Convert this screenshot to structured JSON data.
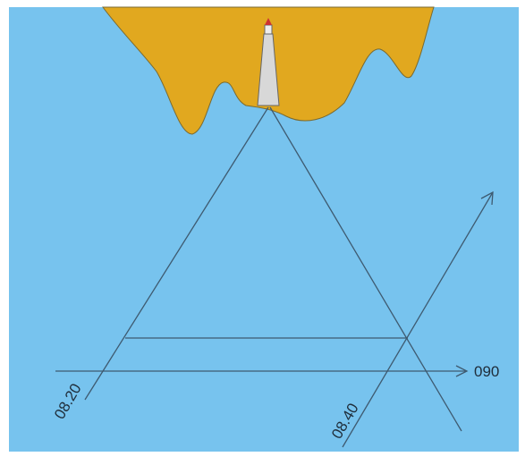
{
  "labels": {
    "course": "090",
    "time_1": "08.20",
    "time_2": "08.40"
  }
}
